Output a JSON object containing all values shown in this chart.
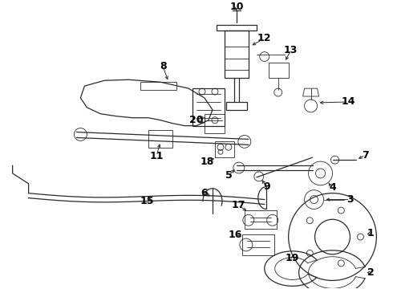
{
  "background_color": "#ffffff",
  "line_color": "#2a2a2a",
  "label_color": "#000000",
  "font_size": 9,
  "bold": true,
  "fig_w": 4.9,
  "fig_h": 3.6,
  "dpi": 100
}
